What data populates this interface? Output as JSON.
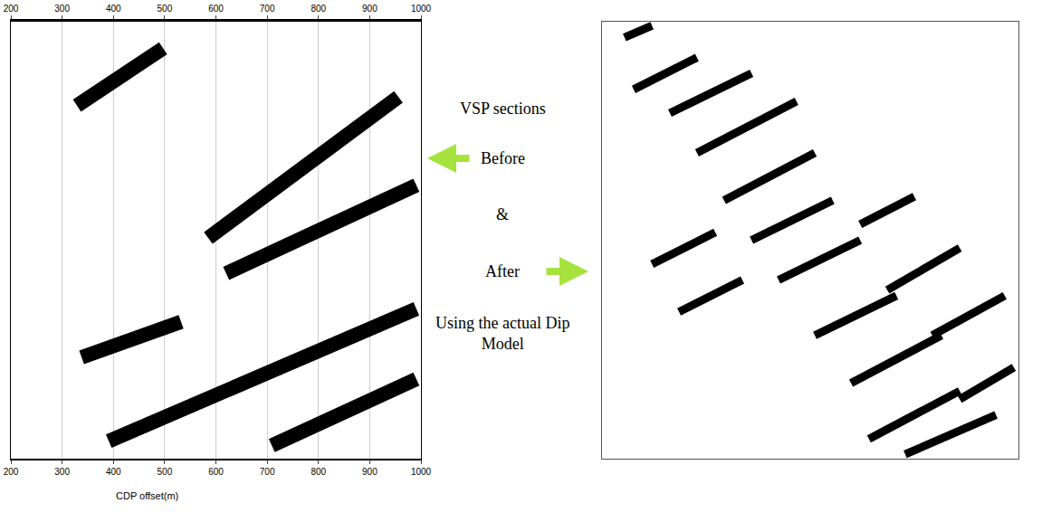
{
  "chart_data": [
    {
      "type": "line",
      "x_label": "CDP offset(m)",
      "color": "#000000",
      "line_style": "solid",
      "tick_labels": "x",
      "xlim": [
        200,
        1000
      ],
      "xticks": [
        200,
        300,
        400,
        500,
        600,
        700,
        800,
        900,
        1000
      ],
      "ylim": [
        10,
        0
      ],
      "series": [
        {
          "x": [
            329,
            497
          ],
          "values": [
            1.92,
            0.61
          ]
        },
        {
          "x": [
            585,
            956
          ],
          "values": [
            4.95,
            1.72
          ]
        },
        {
          "x": [
            620,
            991
          ],
          "values": [
            5.76,
            3.74
          ]
        },
        {
          "x": [
            338,
            532
          ],
          "values": [
            7.68,
            6.87
          ]
        },
        {
          "x": [
            391,
            991
          ],
          "values": [
            9.6,
            6.57
          ]
        },
        {
          "x": [
            709,
            991
          ],
          "values": [
            9.7,
            8.18
          ]
        }
      ]
    },
    {
      "type": "line",
      "color": "#000000",
      "line_style": "solid",
      "tick_labels": false,
      "xlim": [
        0,
        100
      ],
      "ylim": [
        100,
        0
      ],
      "series": [
        {
          "x": [
            5.4,
            12
          ],
          "values": [
            3.6,
            0.9
          ]
        },
        {
          "x": [
            7.6,
            22.8
          ],
          "values": [
            15.5,
            8.2
          ]
        },
        {
          "x": [
            16.3,
            35.9
          ],
          "values": [
            20.9,
            11.8
          ]
        },
        {
          "x": [
            22.8,
            46.7
          ],
          "values": [
            30,
            18.2
          ]
        },
        {
          "x": [
            29.3,
            51.1
          ],
          "values": [
            40.9,
            30
          ]
        },
        {
          "x": [
            12,
            27.2
          ],
          "values": [
            55.5,
            48.2
          ]
        },
        {
          "x": [
            35.9,
            55.4
          ],
          "values": [
            50,
            40.9
          ]
        },
        {
          "x": [
            18.5,
            33.7
          ],
          "values": [
            66.4,
            59.1
          ]
        },
        {
          "x": [
            42.4,
            62
          ],
          "values": [
            59.1,
            50
          ]
        },
        {
          "x": [
            62,
            75
          ],
          "values": [
            46.4,
            40
          ]
        },
        {
          "x": [
            51.1,
            70.7
          ],
          "values": [
            71.8,
            62.7
          ]
        },
        {
          "x": [
            68.5,
            85.9
          ],
          "values": [
            61.4,
            51.8
          ]
        },
        {
          "x": [
            59.8,
            81.5
          ],
          "values": [
            82.7,
            71.8
          ]
        },
        {
          "x": [
            79.3,
            96.7
          ],
          "values": [
            71.8,
            62.7
          ]
        },
        {
          "x": [
            64.1,
            85.9
          ],
          "values": [
            95.5,
            84.5
          ]
        },
        {
          "x": [
            85.9,
            98.9
          ],
          "values": [
            86.4,
            79.1
          ]
        },
        {
          "x": [
            72.8,
            94.6
          ],
          "values": [
            99,
            90
          ]
        }
      ]
    }
  ],
  "text": {
    "title": "VSP sections",
    "before": "Before",
    "and": "&",
    "after": "After",
    "model": "Using the actual Dip Model"
  }
}
